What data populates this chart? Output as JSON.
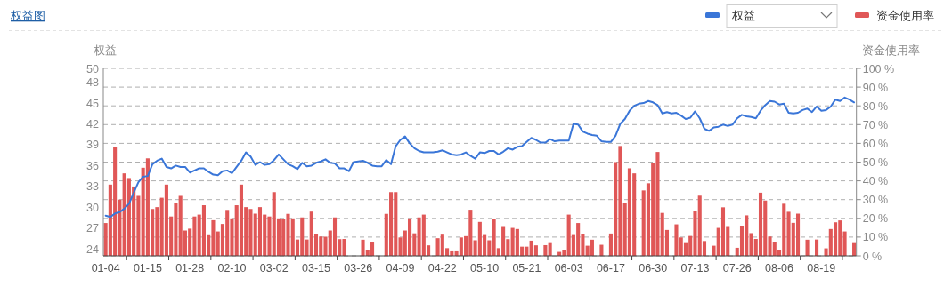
{
  "chart_data": {
    "type": "bar",
    "title": "权益图",
    "ylabel": "权益",
    "y2label": "资金使用率",
    "categories": [
      "01-04",
      null,
      null,
      null,
      null,
      null,
      null,
      null,
      null,
      "01-15",
      null,
      null,
      null,
      null,
      null,
      null,
      null,
      null,
      "01-28",
      null,
      null,
      null,
      null,
      null,
      null,
      null,
      null,
      "02-10",
      null,
      null,
      null,
      null,
      null,
      null,
      null,
      null,
      "03-02",
      null,
      null,
      null,
      null,
      null,
      null,
      null,
      null,
      "03-15",
      null,
      null,
      null,
      null,
      null,
      null,
      null,
      null,
      "03-26",
      null,
      null,
      null,
      null,
      null,
      null,
      null,
      null,
      "04-09",
      null,
      null,
      null,
      null,
      null,
      null,
      null,
      null,
      "04-22",
      null,
      null,
      null,
      null,
      null,
      null,
      null,
      null,
      "05-10",
      null,
      null,
      null,
      null,
      null,
      null,
      null,
      null,
      "05-21",
      null,
      null,
      null,
      null,
      null,
      null,
      null,
      null,
      "06-03",
      null,
      null,
      null,
      null,
      null,
      null,
      null,
      null,
      "06-17",
      null,
      null,
      null,
      null,
      null,
      null,
      null,
      null,
      "06-30",
      null,
      null,
      null,
      null,
      null,
      null,
      null,
      null,
      "07-13",
      null,
      null,
      null,
      null,
      null,
      null,
      null,
      null,
      "07-26",
      null,
      null,
      null,
      null,
      null,
      null,
      null,
      null,
      "08-06",
      null,
      null,
      null,
      null,
      null,
      null,
      null,
      null,
      "08-19",
      null,
      null,
      null,
      null,
      null,
      null,
      null
    ],
    "ylim": [
      23,
      50
    ],
    "yticks": [
      24,
      27,
      30,
      33,
      36,
      39,
      42,
      45,
      48,
      50
    ],
    "y2lim": [
      0,
      100
    ],
    "y2ticks": [
      {
        "value": 0,
        "label": "0 %"
      },
      {
        "value": 10,
        "label": "10 %"
      },
      {
        "value": 20,
        "label": "20 %"
      },
      {
        "value": 30,
        "label": "30 %"
      },
      {
        "value": 40,
        "label": "40 %"
      },
      {
        "value": 50,
        "label": "50 %"
      },
      {
        "value": 60,
        "label": "60 %"
      },
      {
        "value": 70,
        "label": "70 %"
      },
      {
        "value": 80,
        "label": "80 %"
      },
      {
        "value": 90,
        "label": "90 %"
      },
      {
        "value": 100,
        "label": "100 %"
      }
    ],
    "grid": "y2",
    "legend": "top right",
    "line_style": "solid",
    "series": [
      {
        "name": "权益",
        "type": "line",
        "color": "#3a76d8",
        "values": [
          28.8,
          28.6,
          29.1,
          29.3,
          29.8,
          30.5,
          32.1,
          33.6,
          34.4,
          34.5,
          36.2,
          36.7,
          37.0,
          35.8,
          35.6,
          36.0,
          35.8,
          35.8,
          35.0,
          35.3,
          35.6,
          35.6,
          35.1,
          34.7,
          34.6,
          35.2,
          35.3,
          34.9,
          35.8,
          36.7,
          37.9,
          37.3,
          36.1,
          36.5,
          36.1,
          36.2,
          36.8,
          37.6,
          36.9,
          36.2,
          35.9,
          35.5,
          36.4,
          35.9,
          36.0,
          36.4,
          36.6,
          36.9,
          36.4,
          36.3,
          35.6,
          35.6,
          35.2,
          36.5,
          36.6,
          36.7,
          36.4,
          36.0,
          35.9,
          35.9,
          36.8,
          36.2,
          38.8,
          39.7,
          40.2,
          39.2,
          38.5,
          38.1,
          37.9,
          37.9,
          37.9,
          38.0,
          38.2,
          37.9,
          37.6,
          37.5,
          37.6,
          37.9,
          37.4,
          37.0,
          37.9,
          37.8,
          38.1,
          38.1,
          37.6,
          38.0,
          38.5,
          38.3,
          38.7,
          38.8,
          39.4,
          40.0,
          39.7,
          39.3,
          39.3,
          39.8,
          39.5,
          39.6,
          39.6,
          39.6,
          42.0,
          41.9,
          40.9,
          40.6,
          40.4,
          40.3,
          39.5,
          39.4,
          39.4,
          40.3,
          42.0,
          42.7,
          43.9,
          44.6,
          44.9,
          45.0,
          45.3,
          45.1,
          44.7,
          43.5,
          43.7,
          43.5,
          43.6,
          43.2,
          42.7,
          42.9,
          43.8,
          42.8,
          41.3,
          41.0,
          41.5,
          41.6,
          41.9,
          41.7,
          41.9,
          42.8,
          43.3,
          43.1,
          43.0,
          42.8,
          43.9,
          44.7,
          45.3,
          45.2,
          44.8,
          44.9,
          43.6,
          43.5,
          43.6,
          44.0,
          44.2,
          43.7,
          44.5,
          43.9,
          44.0,
          44.5,
          45.5,
          45.3,
          45.8,
          45.5,
          45.1
        ]
      },
      {
        "name": "资金使用率",
        "axis": "y2",
        "color": "#e05757",
        "values": [
          17.5,
          38,
          58,
          30,
          44,
          41.5,
          37,
          32,
          47,
          52,
          25,
          26,
          31,
          38,
          21,
          28,
          32,
          13.5,
          14.5,
          21,
          22,
          27,
          11,
          19,
          13,
          17,
          24.5,
          20,
          27,
          38,
          26,
          25,
          22.5,
          26,
          22,
          21,
          34,
          20,
          19.7,
          22.4,
          20,
          8.7,
          20.5,
          8.7,
          23.6,
          11.4,
          10.3,
          10.2,
          13.5,
          20.5,
          8.9,
          9,
          0,
          0,
          0,
          8.6,
          2.9,
          7.1,
          0,
          0,
          22.4,
          34,
          34,
          9.8,
          13.5,
          20,
          12,
          20.5,
          22,
          5.6,
          0,
          9.4,
          11.3,
          4.1,
          2.4,
          2.4,
          9.8,
          10.5,
          24.6,
          8.3,
          18.1,
          11.1,
          8.3,
          19.8,
          4.1,
          15.4,
          8.9,
          14.9,
          14.3,
          4.9,
          4.9,
          8.1,
          5.6,
          0,
          5.7,
          6.8,
          0,
          2.1,
          3,
          22,
          11.1,
          17.5,
          11.4,
          5.4,
          8.6,
          0,
          5.9,
          0,
          11.9,
          50,
          58.6,
          28.1,
          46.7,
          44,
          0,
          34.9,
          38.7,
          49.7,
          55.4,
          22.9,
          13.8,
          0,
          16.8,
          9.8,
          6.8,
          10.6,
          24,
          32.1,
          7.9,
          0,
          5.4,
          14.9,
          25.9,
          15.4,
          0,
          4.3,
          15.9,
          21.6,
          12.1,
          9,
          33.7,
          29.5,
          10.3,
          7.3,
          3.3,
          27.8,
          23.5,
          17.6,
          22.5,
          0,
          8.6,
          0,
          8.7,
          0,
          4,
          14.3,
          17.9,
          18.9,
          13,
          0,
          6.8
        ]
      }
    ]
  }
}
